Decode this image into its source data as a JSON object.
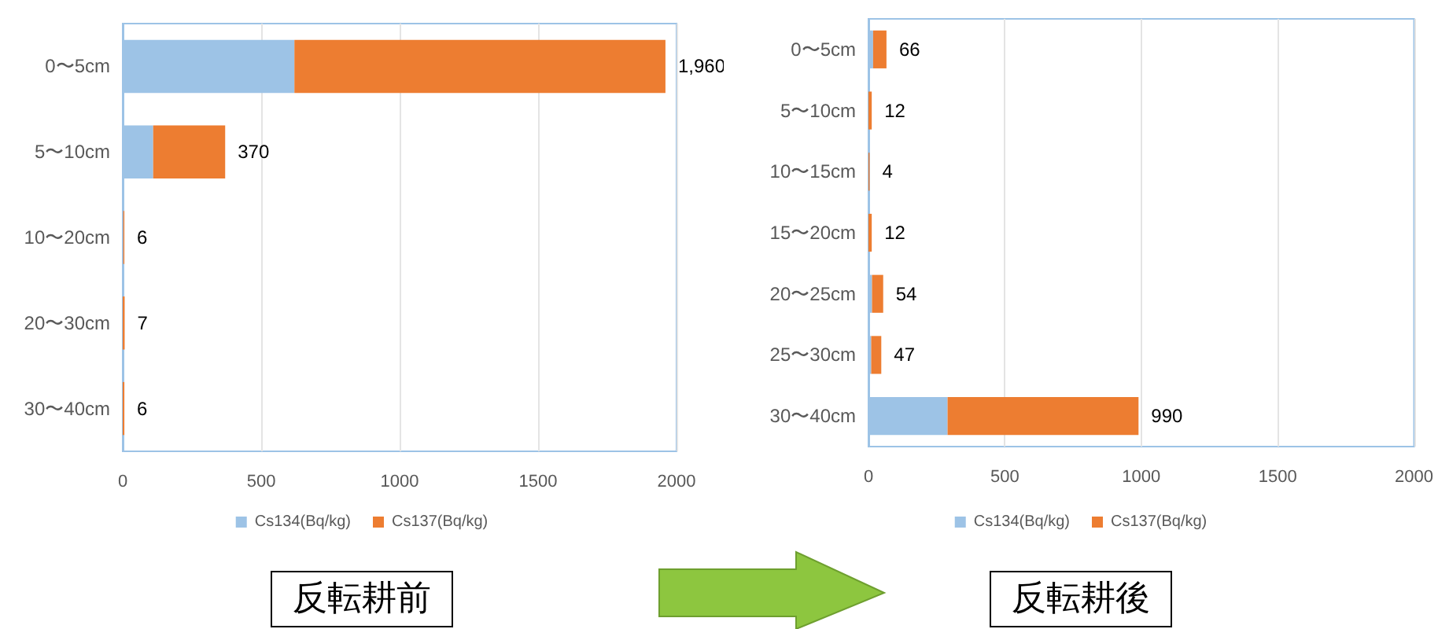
{
  "chart_data": [
    {
      "type": "bar",
      "title": "反転耕前",
      "orientation": "horizontal",
      "stacked": true,
      "categories": [
        "0〜5cm",
        "5〜10cm",
        "10〜20cm",
        "20〜30cm",
        "30〜40cm"
      ],
      "series": [
        {
          "name": "Cs134(Bq/kg)",
          "color": "#9dc3e6",
          "values": [
            620,
            110,
            2,
            0,
            0
          ]
        },
        {
          "name": "Cs137(Bq/kg)",
          "color": "#ed7d31",
          "values": [
            1340,
            260,
            4,
            7,
            6
          ]
        }
      ],
      "totals": [
        "1,960",
        "370",
        "6",
        "7",
        "6"
      ],
      "xlim": [
        0,
        2000
      ],
      "xticks": [
        0,
        500,
        1000,
        1500,
        2000
      ],
      "grid": "x",
      "legend": "bottom"
    },
    {
      "type": "bar",
      "title": "反転耕後",
      "orientation": "horizontal",
      "stacked": true,
      "categories": [
        "0〜5cm",
        "5〜10cm",
        "10〜15cm",
        "15〜20cm",
        "20〜25cm",
        "25〜30cm",
        "30〜40cm"
      ],
      "series": [
        {
          "name": "Cs134(Bq/kg)",
          "color": "#9dc3e6",
          "values": [
            17,
            0,
            0,
            0,
            13,
            10,
            290
          ]
        },
        {
          "name": "Cs137(Bq/kg)",
          "color": "#ed7d31",
          "values": [
            49,
            12,
            4,
            12,
            41,
            37,
            700
          ]
        }
      ],
      "totals": [
        "66",
        "12",
        "4",
        "12",
        "54",
        "47",
        "990"
      ],
      "xlim": [
        0,
        2000
      ],
      "xticks": [
        0,
        500,
        1000,
        1500,
        2000
      ],
      "grid": "x",
      "legend": "bottom"
    }
  ]
}
